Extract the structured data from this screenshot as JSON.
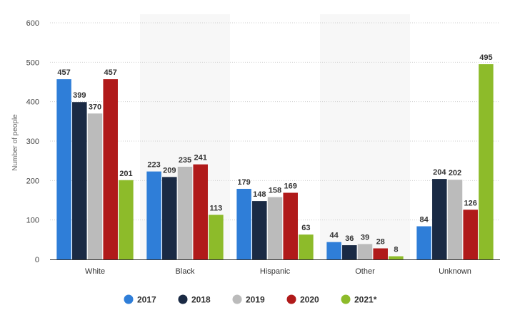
{
  "chart_data": {
    "type": "bar",
    "title": "",
    "xlabel": "",
    "ylabel": "Number of people",
    "ylim": [
      0,
      600
    ],
    "yticks": [
      0,
      100,
      200,
      300,
      400,
      500,
      600
    ],
    "grid": true,
    "legend_position": "bottom",
    "categories": [
      "White",
      "Black",
      "Hispanic",
      "Other",
      "Unknown"
    ],
    "series": [
      {
        "name": "2017",
        "color": "#2f7ed8",
        "values": [
          457,
          223,
          179,
          44,
          84
        ]
      },
      {
        "name": "2018",
        "color": "#1a2a44",
        "values": [
          399,
          209,
          148,
          36,
          204
        ]
      },
      {
        "name": "2019",
        "color": "#bbbbbb",
        "values": [
          370,
          235,
          158,
          39,
          202
        ]
      },
      {
        "name": "2020",
        "color": "#b01a1a",
        "values": [
          457,
          241,
          169,
          28,
          126
        ]
      },
      {
        "name": "2021*",
        "color": "#8dbb2a",
        "values": [
          201,
          113,
          63,
          8,
          495
        ]
      }
    ]
  }
}
